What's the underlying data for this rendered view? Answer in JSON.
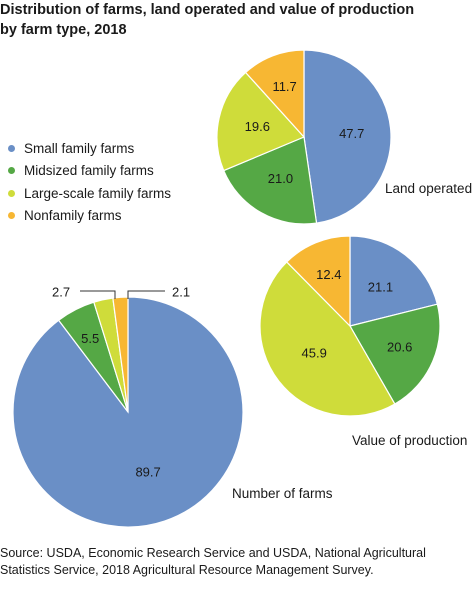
{
  "title": {
    "line1": "Distribution of farms, land operated and value of production",
    "line2": "by farm type, 2018"
  },
  "legend": [
    {
      "label": "Small family farms",
      "color": "#6a8fc6"
    },
    {
      "label": "Midsized family farms",
      "color": "#55a845"
    },
    {
      "label": "Large-scale family farms",
      "color": "#cfdc3a"
    },
    {
      "label": "Nonfamily farms",
      "color": "#f7b733"
    }
  ],
  "chart_data": [
    {
      "type": "pie",
      "title": "Land operated",
      "categories": [
        "Small family farms",
        "Midsized family farms",
        "Large-scale family farms",
        "Nonfamily farms"
      ],
      "values": [
        47.7,
        21.0,
        19.6,
        11.7
      ],
      "value_labels": [
        "47.7",
        "21.0",
        "19.6",
        "11.7"
      ]
    },
    {
      "type": "pie",
      "title": "Value of production",
      "categories": [
        "Small family farms",
        "Midsized family farms",
        "Large-scale family farms",
        "Nonfamily farms"
      ],
      "values": [
        21.1,
        20.6,
        45.9,
        12.4
      ],
      "value_labels": [
        "21.1",
        "20.6",
        "45.9",
        "12.4"
      ]
    },
    {
      "type": "pie",
      "title": "Number of farms",
      "categories": [
        "Small family farms",
        "Midsized family farms",
        "Large-scale family farms",
        "Nonfamily farms"
      ],
      "values": [
        89.7,
        5.5,
        2.7,
        2.1
      ],
      "value_labels": [
        "89.7",
        "5.5",
        "2.7",
        "2.1"
      ]
    }
  ],
  "source": {
    "line1": "Source: USDA, Economic Research Service and USDA, National Agricultural",
    "line2": "Statistics Service, 2018 Agricultural Resource Management Survey."
  }
}
